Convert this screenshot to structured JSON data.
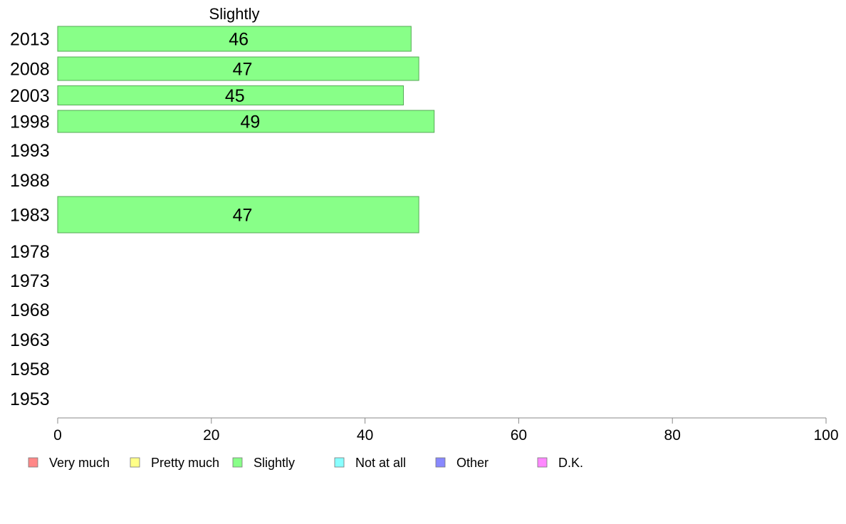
{
  "chart_data": {
    "type": "bar",
    "orientation": "horizontal",
    "title": "Slightly",
    "categories": [
      "2013",
      "2008",
      "2003",
      "1998",
      "1993",
      "1988",
      "1983",
      "1978",
      "1973",
      "1968",
      "1963",
      "1958",
      "1953"
    ],
    "series": [
      {
        "name": "Slightly",
        "color": "#88ff88",
        "values": [
          46,
          47,
          45,
          49,
          null,
          null,
          47,
          null,
          null,
          null,
          null,
          null,
          null
        ]
      }
    ],
    "xlim": [
      0,
      100
    ],
    "xticks": [
      "0",
      "20",
      "40",
      "60",
      "80",
      "100"
    ],
    "grid": false,
    "legend_position": "bottom",
    "legend": [
      {
        "label": "Very much",
        "color": "#ff8888"
      },
      {
        "label": "Pretty much",
        "color": "#ffff88"
      },
      {
        "label": "Slightly",
        "color": "#88ff88"
      },
      {
        "label": "Not at all",
        "color": "#88ffff"
      },
      {
        "label": "Other",
        "color": "#8888ff"
      },
      {
        "label": "D.K.",
        "color": "#ff88ff"
      }
    ]
  }
}
